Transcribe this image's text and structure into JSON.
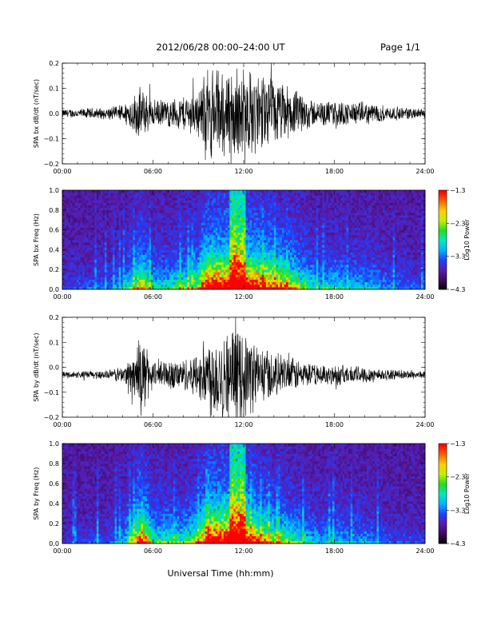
{
  "header": {
    "title": "2012/06/28  00:00–24:00 UT",
    "page": "Page 1/1"
  },
  "xaxis_label": "Universal Time (hh:mm)",
  "colors": {
    "trace": "#000000",
    "colormap": [
      "#000000",
      "#3a0a5e",
      "#5a1aa8",
      "#2040ff",
      "#00b0ff",
      "#00e8c0",
      "#20e020",
      "#c0f000",
      "#ffd000",
      "#ff6000",
      "#ff0000"
    ]
  },
  "chart_data": [
    {
      "type": "line",
      "name": "bx-waveform",
      "ylabel": "SPA bx dB/dt (nT/sec)",
      "xlim": [
        0,
        24
      ],
      "ylim": [
        -0.2,
        0.2
      ],
      "xticks": [
        "00:00",
        "06:00",
        "12:00",
        "18:00",
        "24:00"
      ],
      "yticks": [
        "−0.2",
        "−0.1",
        "0.0",
        "0.1",
        "0.2"
      ],
      "ytick_values": [
        -0.2,
        -0.1,
        0.0,
        0.1,
        0.2
      ],
      "baseline": 0.0,
      "envelope_hours": [
        0,
        1,
        2,
        3,
        4,
        4.8,
        5.2,
        6,
        7,
        8,
        9,
        9.5,
        10,
        11,
        12,
        13,
        14,
        15,
        16,
        17,
        18,
        19,
        20,
        21,
        22,
        23,
        24
      ],
      "envelope_amplitude": [
        0.02,
        0.02,
        0.025,
        0.025,
        0.04,
        0.09,
        0.12,
        0.06,
        0.06,
        0.08,
        0.1,
        0.2,
        0.2,
        0.2,
        0.2,
        0.18,
        0.15,
        0.12,
        0.08,
        0.05,
        0.06,
        0.05,
        0.05,
        0.04,
        0.03,
        0.025,
        0.02
      ]
    },
    {
      "type": "heatmap",
      "name": "bx-spectrogram",
      "ylabel": "SPA bx Freq (Hz)",
      "colorbar_label": "Log10 Power",
      "xlim": [
        0,
        24
      ],
      "ylim": [
        0,
        1.0
      ],
      "xticks": [
        "00:00",
        "06:00",
        "12:00",
        "18:00",
        "24:00"
      ],
      "yticks": [
        "0.0",
        "0.2",
        "0.4",
        "0.6",
        "0.8",
        "1.0"
      ],
      "ytick_values": [
        0,
        0.2,
        0.4,
        0.6,
        0.8,
        1.0
      ],
      "color_range": [
        -4.3,
        -1.3
      ],
      "colorbar_ticks": [
        "−1.3",
        "−2.3",
        "−3.3",
        "−4.3"
      ],
      "colorbar_tick_values": [
        -1.3,
        -2.3,
        -3.3,
        -4.3
      ]
    },
    {
      "type": "line",
      "name": "by-waveform",
      "ylabel": "SPA by dB/dt (nT/sec)",
      "xlim": [
        0,
        24
      ],
      "ylim": [
        -0.2,
        0.2
      ],
      "xticks": [
        "00:00",
        "06:00",
        "12:00",
        "18:00",
        "24:00"
      ],
      "yticks": [
        "−0.2",
        "−0.1",
        "0.0",
        "0.1",
        "0.2"
      ],
      "ytick_values": [
        -0.2,
        -0.1,
        0.0,
        0.1,
        0.2
      ],
      "baseline": -0.03,
      "envelope_hours": [
        0,
        1,
        2,
        3,
        4,
        4.8,
        5.2,
        6,
        7,
        8,
        9,
        9.5,
        10,
        11,
        12,
        13,
        14,
        15,
        16,
        17,
        18,
        19,
        20,
        21,
        22,
        23,
        24
      ],
      "envelope_amplitude": [
        0.015,
        0.015,
        0.02,
        0.02,
        0.04,
        0.1,
        0.18,
        0.07,
        0.07,
        0.07,
        0.1,
        0.17,
        0.2,
        0.2,
        0.2,
        0.14,
        0.1,
        0.08,
        0.06,
        0.04,
        0.05,
        0.04,
        0.04,
        0.03,
        0.02,
        0.02,
        0.015
      ]
    },
    {
      "type": "heatmap",
      "name": "by-spectrogram",
      "ylabel": "SPA by Freq (Hz)",
      "colorbar_label": "Log10 Power",
      "xlim": [
        0,
        24
      ],
      "ylim": [
        0,
        1.0
      ],
      "xticks": [
        "00:00",
        "06:00",
        "12:00",
        "18:00",
        "24:00"
      ],
      "yticks": [
        "0.0",
        "0.2",
        "0.4",
        "0.6",
        "0.8",
        "1.0"
      ],
      "ytick_values": [
        0,
        0.2,
        0.4,
        0.6,
        0.8,
        1.0
      ],
      "color_range": [
        -4.3,
        -1.3
      ],
      "colorbar_ticks": [
        "−1.3",
        "−2.3",
        "−3.3",
        "−4.3"
      ],
      "colorbar_tick_values": [
        -1.3,
        -2.3,
        -3.3,
        -4.3
      ]
    }
  ]
}
